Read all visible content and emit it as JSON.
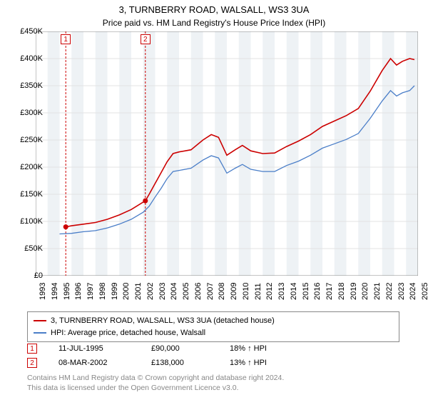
{
  "title": "3, TURNBERRY ROAD, WALSALL, WS3 3UA",
  "subtitle": "Price paid vs. HM Land Registry's House Price Index (HPI)",
  "chart": {
    "type": "line",
    "background_color": "#ffffff",
    "grid_color": "#e3e3e3",
    "shaded_bands_color": "#eef2f5",
    "x": {
      "min": 1993,
      "max": 2025,
      "ticks": [
        1993,
        1994,
        1995,
        1996,
        1997,
        1998,
        1999,
        2000,
        2001,
        2002,
        2003,
        2004,
        2005,
        2006,
        2007,
        2008,
        2009,
        2010,
        2011,
        2012,
        2013,
        2014,
        2015,
        2016,
        2017,
        2018,
        2019,
        2020,
        2021,
        2022,
        2023,
        2024,
        2025
      ],
      "label_fontsize": 11,
      "rotation": -90
    },
    "y": {
      "min": 0,
      "max": 450000,
      "ticks": [
        0,
        50000,
        100000,
        150000,
        200000,
        250000,
        300000,
        350000,
        400000,
        450000
      ],
      "tick_labels": [
        "£0",
        "£50K",
        "£100K",
        "£150K",
        "£200K",
        "£250K",
        "£300K",
        "£350K",
        "£400K",
        "£450K"
      ],
      "label_fontsize": 11
    },
    "series": [
      {
        "name": "3, TURNBERRY ROAD, WALSALL, WS3 3UA (detached house)",
        "color": "#cc0000",
        "line_width": 1.6,
        "data": [
          [
            1995.52,
            90000
          ],
          [
            1996,
            92000
          ],
          [
            1997,
            95000
          ],
          [
            1998,
            98000
          ],
          [
            1999,
            104000
          ],
          [
            2000,
            112000
          ],
          [
            2001,
            122000
          ],
          [
            2002.18,
            138000
          ],
          [
            2002.5,
            150000
          ],
          [
            2003,
            170000
          ],
          [
            2003.5,
            190000
          ],
          [
            2004,
            210000
          ],
          [
            2004.5,
            225000
          ],
          [
            2005,
            228000
          ],
          [
            2006,
            232000
          ],
          [
            2007,
            250000
          ],
          [
            2007.7,
            260000
          ],
          [
            2008.3,
            255000
          ],
          [
            2009,
            222000
          ],
          [
            2009.7,
            232000
          ],
          [
            2010.3,
            240000
          ],
          [
            2011,
            230000
          ],
          [
            2012,
            225000
          ],
          [
            2013,
            226000
          ],
          [
            2014,
            238000
          ],
          [
            2015,
            248000
          ],
          [
            2016,
            260000
          ],
          [
            2017,
            275000
          ],
          [
            2018,
            285000
          ],
          [
            2019,
            295000
          ],
          [
            2020,
            308000
          ],
          [
            2021,
            340000
          ],
          [
            2022,
            378000
          ],
          [
            2022.7,
            400000
          ],
          [
            2023.2,
            388000
          ],
          [
            2023.7,
            395000
          ],
          [
            2024.3,
            400000
          ],
          [
            2024.7,
            398000
          ]
        ]
      },
      {
        "name": "HPI: Average price, detached house, Walsall",
        "color": "#4a7ec8",
        "line_width": 1.3,
        "data": [
          [
            1995,
            77000
          ],
          [
            1996,
            78000
          ],
          [
            1997,
            81000
          ],
          [
            1998,
            83000
          ],
          [
            1999,
            88000
          ],
          [
            2000,
            95000
          ],
          [
            2001,
            104000
          ],
          [
            2002,
            117000
          ],
          [
            2002.5,
            128000
          ],
          [
            2003,
            145000
          ],
          [
            2003.5,
            161000
          ],
          [
            2004,
            179000
          ],
          [
            2004.5,
            192000
          ],
          [
            2005,
            194000
          ],
          [
            2006,
            198000
          ],
          [
            2007,
            213000
          ],
          [
            2007.7,
            221000
          ],
          [
            2008.3,
            217000
          ],
          [
            2009,
            189000
          ],
          [
            2009.7,
            198000
          ],
          [
            2010.3,
            205000
          ],
          [
            2011,
            196000
          ],
          [
            2012,
            192000
          ],
          [
            2013,
            192000
          ],
          [
            2014,
            203000
          ],
          [
            2015,
            211000
          ],
          [
            2016,
            222000
          ],
          [
            2017,
            235000
          ],
          [
            2018,
            243000
          ],
          [
            2019,
            251000
          ],
          [
            2020,
            262000
          ],
          [
            2021,
            290000
          ],
          [
            2022,
            322000
          ],
          [
            2022.7,
            341000
          ],
          [
            2023.2,
            331000
          ],
          [
            2023.7,
            337000
          ],
          [
            2024.3,
            341000
          ],
          [
            2024.7,
            350000
          ]
        ]
      }
    ],
    "sale_markers": [
      {
        "label": "1",
        "year": 1995.52,
        "price": 90000,
        "color": "#cc0000"
      },
      {
        "label": "2",
        "year": 2002.18,
        "price": 138000,
        "color": "#cc0000"
      }
    ]
  },
  "legend": {
    "items": [
      {
        "color": "#cc0000",
        "label": "3, TURNBERRY ROAD, WALSALL, WS3 3UA (detached house)"
      },
      {
        "color": "#4a7ec8",
        "label": "HPI: Average price, detached house, Walsall"
      }
    ]
  },
  "data_points": [
    {
      "badge": "1",
      "badge_color": "#cc0000",
      "date": "11-JUL-1995",
      "price": "£90,000",
      "hpi_delta": "18% ↑ HPI"
    },
    {
      "badge": "2",
      "badge_color": "#cc0000",
      "date": "08-MAR-2002",
      "price": "£138,000",
      "hpi_delta": "13% ↑ HPI"
    }
  ],
  "attribution": {
    "line1": "Contains HM Land Registry data © Crown copyright and database right 2024.",
    "line2": "This data is licensed under the Open Government Licence v3.0."
  }
}
